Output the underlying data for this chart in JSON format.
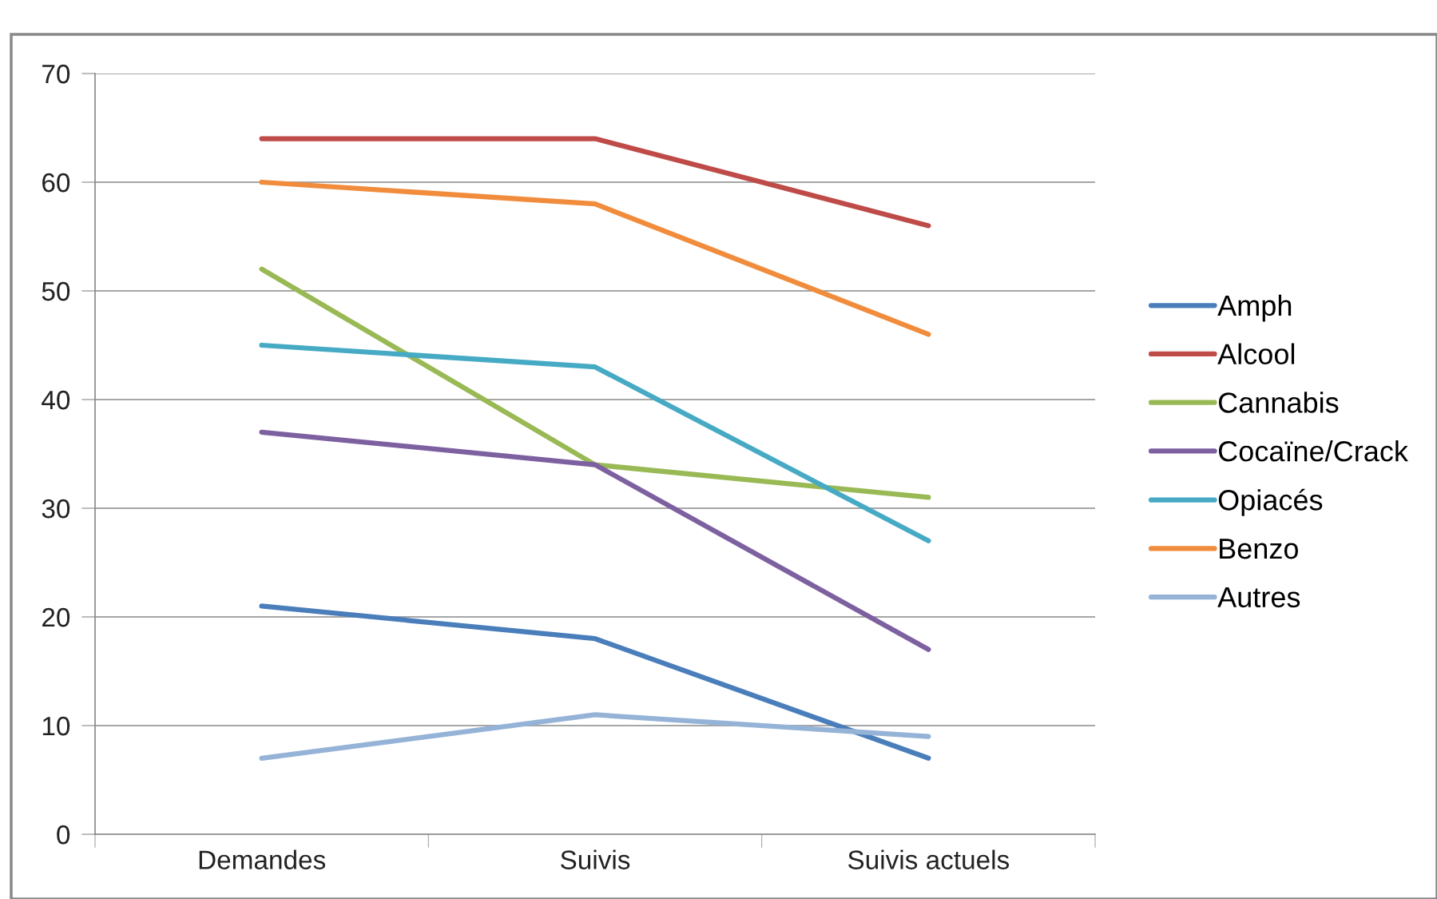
{
  "chart_data": {
    "type": "line",
    "categories": [
      "Demandes",
      "Suivis",
      "Suivis actuels"
    ],
    "series": [
      {
        "name": "Amph",
        "color": "#4a7ebb",
        "values": [
          21,
          18,
          7
        ]
      },
      {
        "name": "Alcool",
        "color": "#be4b48",
        "values": [
          64,
          64,
          56
        ]
      },
      {
        "name": "Cannabis",
        "color": "#98b954",
        "values": [
          52,
          34,
          31
        ]
      },
      {
        "name": "Cocaïne/Crack",
        "color": "#7d60a0",
        "values": [
          37,
          34,
          17
        ]
      },
      {
        "name": "Opiacés",
        "color": "#46aac4",
        "values": [
          45,
          43,
          27
        ]
      },
      {
        "name": "Benzo",
        "color": "#f08c3c",
        "values": [
          60,
          58,
          46
        ]
      },
      {
        "name": "Autres",
        "color": "#95b3d7",
        "values": [
          7,
          11,
          9
        ]
      }
    ],
    "ylim": [
      0,
      70
    ],
    "yticks": [
      0,
      10,
      20,
      30,
      40,
      50,
      60,
      70
    ],
    "grid": "y",
    "legend": "right",
    "marker": "none",
    "line_style": "solid"
  }
}
